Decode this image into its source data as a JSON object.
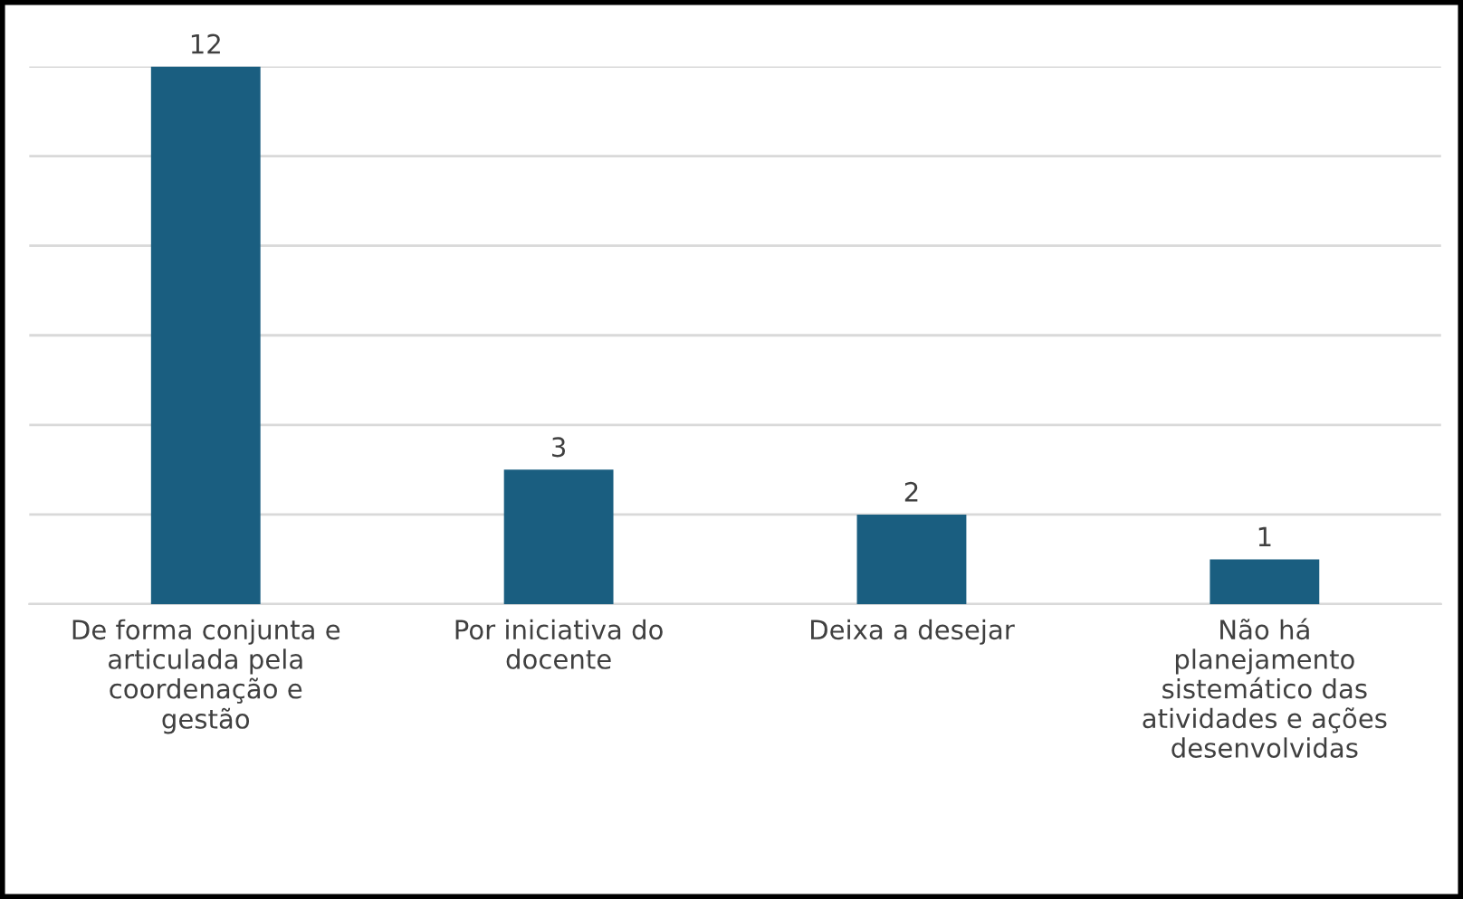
{
  "chart_data": {
    "type": "bar",
    "categories": [
      "De forma conjunta e\narticulada pela\ncoordenação e\ngestão",
      "Por iniciativa do\ndocente",
      "Deixa a desejar",
      "Não há\nplanejamento\nsistemático das\natividades e ações\ndesenvolvidas"
    ],
    "values": [
      12,
      3,
      2,
      1
    ],
    "color": "#1a5e80",
    "ylim": [
      0,
      12
    ],
    "yticks": [
      {
        "value": 0,
        "label": null
      },
      {
        "value": 2,
        "label": null
      },
      {
        "value": 4,
        "label": null
      },
      {
        "value": 6,
        "label": null
      },
      {
        "value": 8,
        "label": null
      },
      {
        "value": 10,
        "label": null
      },
      {
        "value": 12,
        "label": null
      }
    ],
    "tick_labels": "x",
    "grid": "y",
    "data_labels": true
  }
}
